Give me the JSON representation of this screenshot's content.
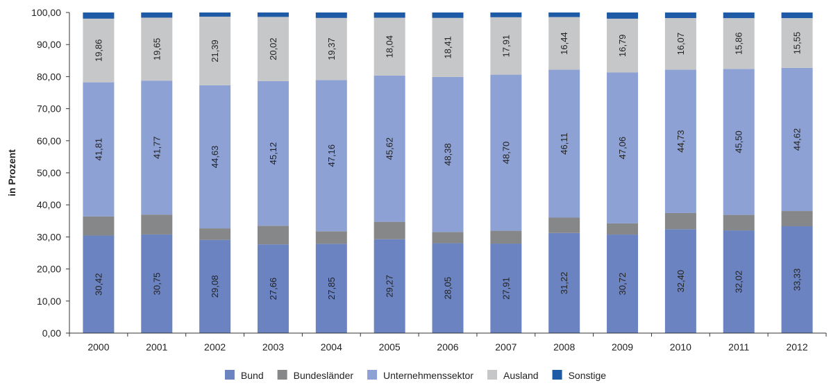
{
  "chart_data": {
    "type": "bar",
    "stacked": true,
    "ylabel": "in Prozent",
    "xlabel": "",
    "ylim": [
      0,
      100
    ],
    "yticks": [
      "0,00",
      "10,00",
      "20,00",
      "30,00",
      "40,00",
      "50,00",
      "60,00",
      "70,00",
      "80,00",
      "90,00",
      "100,00"
    ],
    "grid": false,
    "legend_position": "bottom",
    "categories": [
      "2000",
      "2001",
      "2002",
      "2003",
      "2004",
      "2005",
      "2006",
      "2007",
      "2008",
      "2009",
      "2010",
      "2011",
      "2012"
    ],
    "series": [
      {
        "name": "Bund",
        "color": "#6b83c0",
        "values": [
          30.42,
          30.75,
          29.08,
          27.66,
          27.85,
          29.27,
          28.05,
          27.91,
          31.22,
          30.72,
          32.4,
          32.02,
          33.33
        ],
        "labels": [
          "30,42",
          "30,75",
          "29,08",
          "27,66",
          "27,85",
          "29,27",
          "28,05",
          "27,91",
          "31,22",
          "30,72",
          "32,40",
          "32,02",
          "33,33"
        ]
      },
      {
        "name": "Bundesländer",
        "color": "#858789",
        "values": [
          5.99,
          6.22,
          3.59,
          5.82,
          3.92,
          5.44,
          3.47,
          4.0,
          4.81,
          3.5,
          5.06,
          4.86,
          4.75
        ],
        "labels": []
      },
      {
        "name": "Unternehmenssektor",
        "color": "#8ea1d4",
        "values": [
          41.81,
          41.77,
          44.63,
          45.12,
          47.16,
          45.62,
          48.38,
          48.7,
          46.11,
          47.06,
          44.73,
          45.5,
          44.62
        ],
        "labels": [
          "41,81",
          "41,77",
          "44,63",
          "45,12",
          "47,16",
          "45,62",
          "48,38",
          "48,70",
          "46,11",
          "47,06",
          "44,73",
          "45,50",
          "44,62"
        ]
      },
      {
        "name": "Ausland",
        "color": "#c6c7c9",
        "values": [
          19.86,
          19.65,
          21.39,
          20.02,
          19.37,
          18.04,
          18.41,
          17.91,
          16.44,
          16.79,
          16.07,
          15.86,
          15.55
        ],
        "labels": [
          "19,86",
          "19,65",
          "21,39",
          "20,02",
          "19,37",
          "18,04",
          "18,41",
          "17,91",
          "16,44",
          "16,79",
          "16,07",
          "15,86",
          "15,55"
        ]
      },
      {
        "name": "Sonstige",
        "color": "#1f5aa6",
        "values": [
          1.92,
          1.61,
          1.31,
          1.38,
          1.7,
          1.63,
          1.69,
          1.48,
          1.42,
          1.93,
          1.74,
          1.76,
          1.75
        ],
        "labels": []
      }
    ]
  }
}
